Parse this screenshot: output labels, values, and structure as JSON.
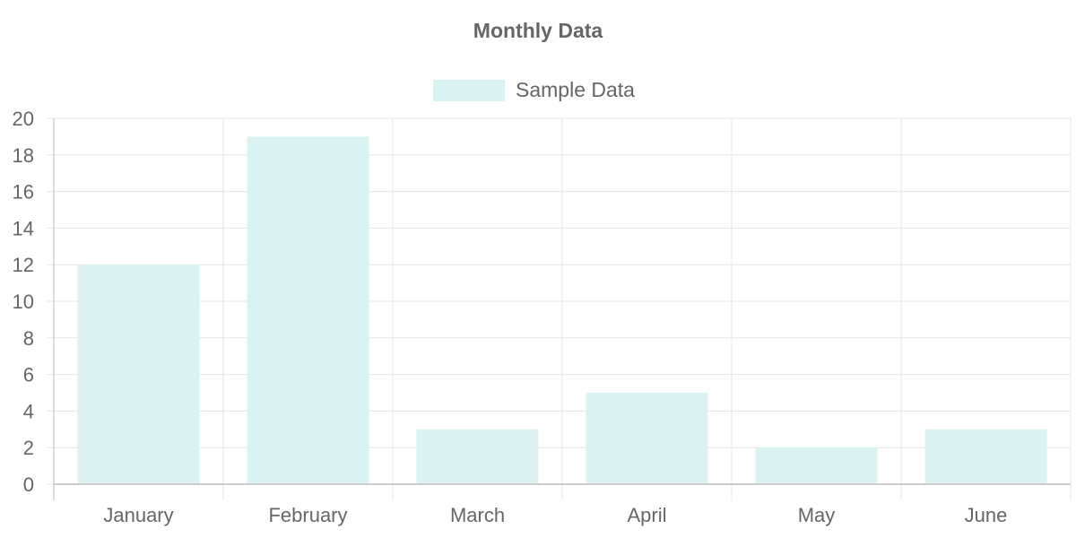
{
  "chart_data": {
    "type": "bar",
    "title": "Monthly Data",
    "categories": [
      "January",
      "February",
      "March",
      "April",
      "May",
      "June"
    ],
    "series": [
      {
        "name": "Sample Data",
        "values": [
          12,
          19,
          3,
          5,
          2,
          3
        ],
        "color": "#dbf2f2"
      }
    ],
    "ylim": [
      0,
      20
    ],
    "yticks": [
      0,
      2,
      4,
      6,
      8,
      10,
      12,
      14,
      16,
      18,
      20
    ],
    "grid": true,
    "legend_position": "top-center"
  },
  "colors": {
    "text": "#666666",
    "grid": "#e5e5e5",
    "axis": "#bdbdbd",
    "bar_fill": "#dbf2f2"
  }
}
